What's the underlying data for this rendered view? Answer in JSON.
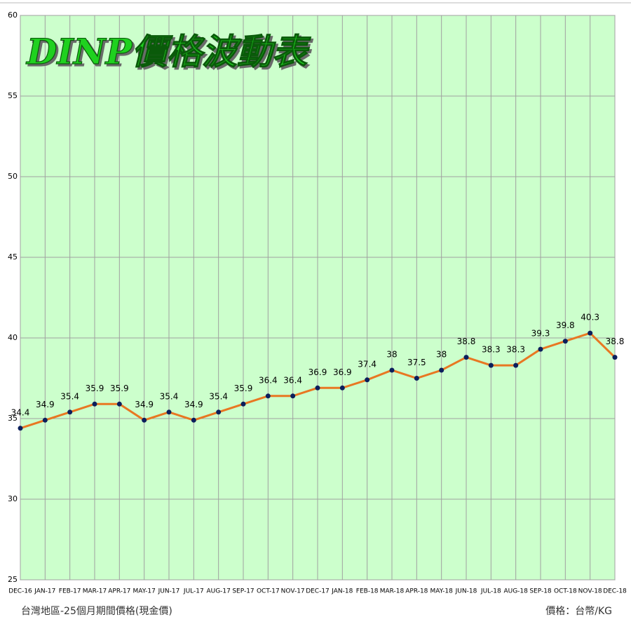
{
  "chart_data": {
    "type": "line",
    "title": "DINP價格波動表",
    "footnote_left": "台灣地區-25個月期間價格(現金價)",
    "footnote_right": "價格：台幣/KG",
    "categories": [
      "DEC-16",
      "JAN-17",
      "FEB-17",
      "MAR-17",
      "APR-17",
      "MAY-17",
      "JUN-17",
      "JUL-17",
      "AUG-17",
      "SEP-17",
      "OCT-17",
      "NOV-17",
      "DEC-17",
      "JAN-18",
      "FEB-18",
      "MAR-18",
      "APR-18",
      "MAY-18",
      "JUN-18",
      "JUL-18",
      "AUG-18",
      "SEP-18",
      "OCT-18",
      "NOV-18",
      "DEC-18"
    ],
    "values": [
      34.4,
      34.9,
      35.4,
      35.9,
      35.9,
      34.9,
      35.4,
      34.9,
      35.4,
      35.9,
      36.4,
      36.4,
      36.9,
      36.9,
      37.4,
      38,
      37.5,
      38,
      38.8,
      38.3,
      38.3,
      39.3,
      39.8,
      40.3,
      38.8
    ],
    "color": "#e87722",
    "marker_color": "#0b1f5c",
    "background": "#ccffcc",
    "ylim": [
      25,
      60
    ],
    "yticks": [
      25,
      30,
      35,
      40,
      45,
      50,
      55,
      60
    ],
    "grid": true
  }
}
